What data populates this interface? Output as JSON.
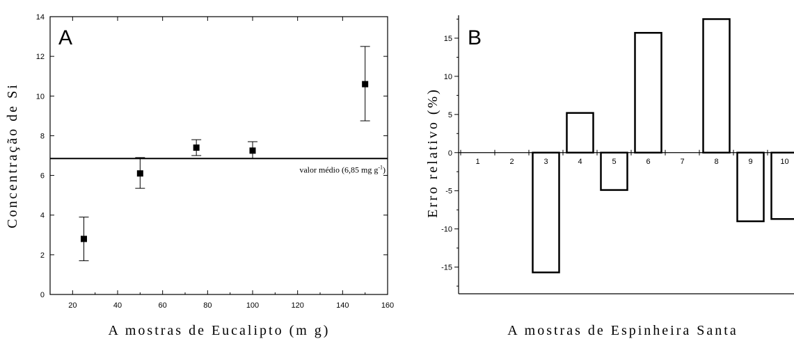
{
  "chart_data": [
    {
      "panel_label": "A",
      "type": "scatter",
      "xlabel": "A mostras de Eucalipto (m g)",
      "ylabel": "Concentração de Si",
      "xlim": [
        10,
        160
      ],
      "ylim": [
        0,
        14
      ],
      "xticks": [
        20,
        40,
        60,
        80,
        100,
        120,
        140,
        160
      ],
      "yticks": [
        0,
        2,
        4,
        6,
        8,
        10,
        12,
        14
      ],
      "points": [
        {
          "x": 25,
          "y": 2.8,
          "err_low": 1.7,
          "err_high": 3.9
        },
        {
          "x": 50,
          "y": 6.1,
          "err_low": 5.35,
          "err_high": 6.9
        },
        {
          "x": 75,
          "y": 7.4,
          "err_low": 7.0,
          "err_high": 7.8
        },
        {
          "x": 100,
          "y": 7.25,
          "err_low": 6.85,
          "err_high": 7.7
        },
        {
          "x": 150,
          "y": 10.6,
          "err_low": 8.75,
          "err_high": 12.5
        }
      ],
      "reference_line": {
        "y": 6.85,
        "label": "valor médio (6,85 mg g",
        "label_sup": "-1",
        "label_end": ")"
      },
      "grid": false
    },
    {
      "panel_label": "B",
      "type": "bar",
      "xlabel": "A mostras de Espinheira Santa",
      "ylabel": "Erro relativo (%)",
      "ylim": [
        -18.5,
        18
      ],
      "yticks": [
        -15,
        -10,
        -5,
        0,
        5,
        10,
        15
      ],
      "categories": [
        "1",
        "2",
        "3",
        "4",
        "5",
        "6",
        "7",
        "8",
        "9",
        "10"
      ],
      "values": [
        0,
        0,
        -15.7,
        5.2,
        -4.9,
        15.7,
        0,
        17.5,
        -9.0,
        -8.7
      ],
      "grid": false
    }
  ]
}
